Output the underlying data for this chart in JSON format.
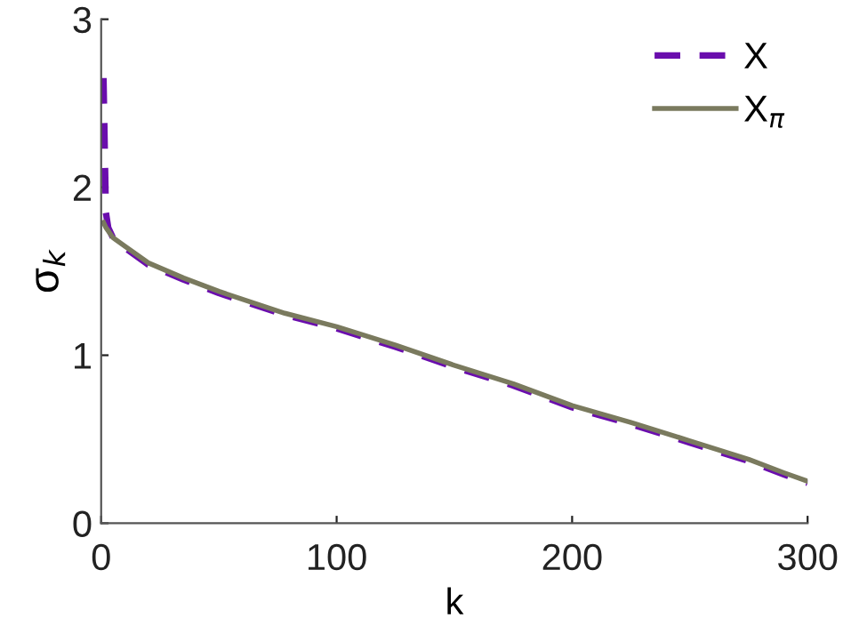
{
  "chart_data": {
    "type": "line",
    "xlabel": "k",
    "ylabel": "σ$_{k}$",
    "xlim": [
      0,
      300
    ],
    "ylim": [
      0,
      3
    ],
    "xticks": [
      0,
      100,
      200,
      300
    ],
    "yticks": [
      0,
      1,
      2,
      3
    ],
    "grid": false,
    "legend": "top right",
    "series": [
      {
        "name": "X",
        "color": "#6a0dad",
        "line_style": "dashed",
        "x": [
          1,
          2,
          3,
          5,
          10,
          20,
          35,
          50,
          78,
          100,
          125,
          150,
          175,
          200,
          225,
          250,
          275,
          290,
          300
        ],
        "values": [
          2.65,
          1.85,
          1.76,
          1.7,
          1.64,
          1.54,
          1.45,
          1.37,
          1.24,
          1.16,
          1.05,
          0.93,
          0.82,
          0.69,
          0.59,
          0.48,
          0.37,
          0.29,
          0.24
        ]
      },
      {
        "name": "X$_{π}$",
        "color": "#7a7a5e",
        "line_style": "solid",
        "x": [
          1,
          2,
          3,
          5,
          10,
          20,
          35,
          50,
          78,
          100,
          125,
          150,
          175,
          200,
          225,
          250,
          275,
          290,
          300
        ],
        "values": [
          1.79,
          1.76,
          1.74,
          1.7,
          1.65,
          1.55,
          1.46,
          1.38,
          1.25,
          1.17,
          1.06,
          0.94,
          0.83,
          0.7,
          0.6,
          0.49,
          0.38,
          0.3,
          0.25
        ]
      }
    ]
  }
}
